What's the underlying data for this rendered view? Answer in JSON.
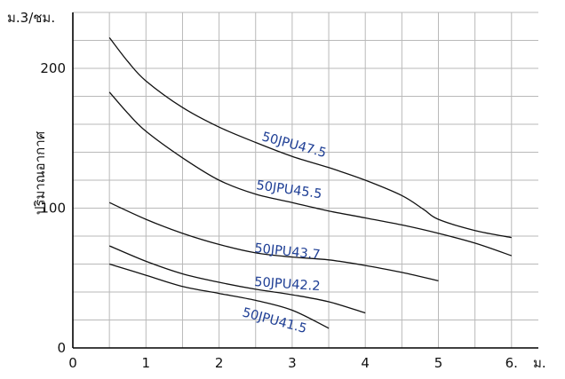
{
  "chart_data": {
    "type": "line",
    "y_unit_label": "ม.3/ชม.",
    "x_unit_label": "ม.",
    "ylabel": "ปริมาณอากาศ",
    "xlabel": "",
    "xlim": [
      0,
      6.4
    ],
    "ylim": [
      0,
      240
    ],
    "x_ticks": [
      "0",
      "1",
      "2",
      "3",
      "4",
      "5",
      "6."
    ],
    "y_ticks": [
      "0",
      "100",
      "200"
    ],
    "grid": true,
    "series": [
      {
        "name": "50JPU47.5",
        "x": [
          0.5,
          0.75,
          1.0,
          1.5,
          2.0,
          2.5,
          3.0,
          3.5,
          4.0,
          4.5,
          4.8,
          5.0,
          5.5,
          6.0
        ],
        "y": [
          222,
          205,
          191,
          172,
          158,
          147,
          137,
          129,
          120,
          109,
          99,
          92,
          84,
          79
        ]
      },
      {
        "name": "50JPU45.5",
        "x": [
          0.5,
          0.75,
          1.0,
          1.5,
          2.0,
          2.5,
          3.0,
          3.5,
          4.0,
          4.5,
          5.0,
          5.5,
          6.0
        ],
        "y": [
          183,
          168,
          155,
          136,
          120,
          110,
          104,
          98,
          93,
          88,
          82,
          75,
          66
        ]
      },
      {
        "name": "50JPU43.7",
        "x": [
          0.5,
          1.0,
          1.5,
          2.0,
          2.5,
          3.0,
          3.5,
          4.0,
          4.5,
          5.0
        ],
        "y": [
          104,
          92,
          82,
          74,
          68,
          65,
          63,
          59,
          54,
          48
        ]
      },
      {
        "name": "50JPU42.2",
        "x": [
          0.5,
          1.0,
          1.5,
          2.0,
          2.5,
          3.0,
          3.5,
          4.0
        ],
        "y": [
          73,
          62,
          53,
          47,
          42,
          38,
          33,
          25
        ]
      },
      {
        "name": "50JPU41.5",
        "x": [
          0.5,
          1.0,
          1.5,
          2.0,
          2.5,
          3.0,
          3.5
        ],
        "y": [
          60,
          52,
          44,
          39,
          34,
          27,
          14
        ]
      }
    ]
  }
}
